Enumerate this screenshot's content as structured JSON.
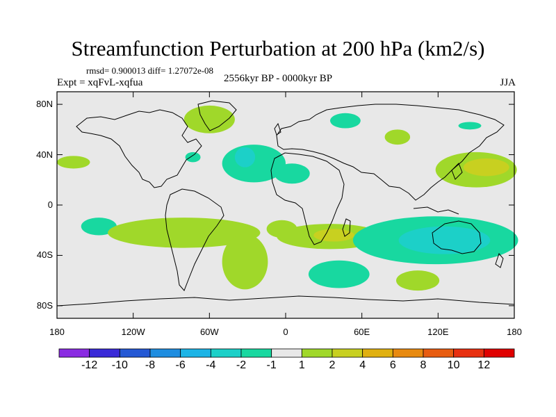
{
  "title": "Streamfunction Perturbation at 200 hPa (km2/s)",
  "stats_line": "rmsd= 0.900013 diff= 1.27072e-08",
  "expt_line": "Expt = xqFvL-xqfua",
  "period_line": "2556kyr BP - 0000kyr BP",
  "season": "JJA",
  "axes": {
    "lat_labels": [
      "80N",
      "40N",
      "0",
      "40S",
      "80S"
    ],
    "lat_values": [
      80,
      40,
      0,
      -40,
      -80
    ],
    "lon_labels": [
      "180",
      "120W",
      "60W",
      "0",
      "60E",
      "120E",
      "180"
    ],
    "lon_values": [
      -180,
      -120,
      -60,
      0,
      60,
      120,
      180
    ],
    "lat_range": [
      -90,
      90
    ],
    "lon_range": [
      -180,
      180
    ]
  },
  "colorbar": {
    "labels": [
      "-12",
      "-10",
      "-8",
      "-6",
      "-4",
      "-2",
      "-1",
      "1",
      "2",
      "4",
      "6",
      "8",
      "10",
      "12"
    ],
    "colors": [
      "#8a2be2",
      "#3a2ad8",
      "#2458d4",
      "#1e8de0",
      "#1cb4e6",
      "#1cd0c8",
      "#18d8a0",
      "#e8e8e8",
      "#a0d82a",
      "#c8d020",
      "#e0b010",
      "#e88a10",
      "#e85c10",
      "#e83010",
      "#e00000"
    ]
  },
  "fields": [
    {
      "name": "n-atlantic-green",
      "lon": -60,
      "lat": 68,
      "rlon": 20,
      "rlat": 11,
      "color": "#a0d82a"
    },
    {
      "name": "ne-america-teal",
      "lon": -73,
      "lat": 38,
      "rlon": 6,
      "rlat": 4,
      "color": "#18d8a0"
    },
    {
      "name": "atlantic-negative-outer",
      "lon": -25,
      "lat": 33,
      "rlon": 25,
      "rlat": 15,
      "color": "#18d8a0"
    },
    {
      "name": "atlantic-negative-inner",
      "lon": -32,
      "lat": 38,
      "rlon": 8,
      "rlat": 8,
      "color": "#1cd0c8"
    },
    {
      "name": "n-africa-teal",
      "lon": 5,
      "lat": 25,
      "rlon": 14,
      "rlat": 8,
      "color": "#18d8a0"
    },
    {
      "name": "w-pacific-coast-green",
      "lon": -167,
      "lat": 34,
      "rlon": 13,
      "rlat": 5,
      "color": "#a0d82a"
    },
    {
      "name": "europe-teal",
      "lon": 47,
      "lat": 67,
      "rlon": 12,
      "rlat": 6,
      "color": "#18d8a0"
    },
    {
      "name": "central-asia-green",
      "lon": 88,
      "lat": 54,
      "rlon": 10,
      "rlat": 6,
      "color": "#a0d82a"
    },
    {
      "name": "siberia-teal",
      "lon": 145,
      "lat": 63,
      "rlon": 9,
      "rlat": 3,
      "color": "#18d8a0"
    },
    {
      "name": "nw-pacific-green",
      "lon": 150,
      "lat": 28,
      "rlon": 32,
      "rlat": 14,
      "color": "#a0d82a"
    },
    {
      "name": "nw-pacific-yellow",
      "lon": 158,
      "lat": 30,
      "rlon": 18,
      "rlat": 7,
      "color": "#c8d020"
    },
    {
      "name": "s-pacific-teal",
      "lon": -147,
      "lat": -17,
      "rlon": 14,
      "rlat": 7,
      "color": "#18d8a0"
    },
    {
      "name": "south-america-green",
      "lon": -80,
      "lat": -22,
      "rlon": 60,
      "rlat": 12,
      "color": "#a0d82a"
    },
    {
      "name": "s-atlantic-green",
      "lon": -32,
      "lat": -45,
      "rlon": 18,
      "rlat": 22,
      "color": "#a0d82a"
    },
    {
      "name": "s-africa-green",
      "lon": 35,
      "lat": -25,
      "rlon": 42,
      "rlat": 10,
      "color": "#a0d82a"
    },
    {
      "name": "s-africa-yellow",
      "lon": 38,
      "lat": -24,
      "rlon": 16,
      "rlat": 5,
      "color": "#c8d020"
    },
    {
      "name": "s-indian-teal",
      "lon": 42,
      "lat": -55,
      "rlon": 24,
      "rlat": 11,
      "color": "#18d8a0"
    },
    {
      "name": "australia-teal",
      "lon": 118,
      "lat": -28,
      "rlon": 65,
      "rlat": 19,
      "color": "#18d8a0"
    },
    {
      "name": "australia-cyan",
      "lon": 125,
      "lat": -28,
      "rlon": 36,
      "rlat": 11,
      "color": "#1cd0c8"
    },
    {
      "name": "s-pacific-green",
      "lon": 104,
      "lat": -60,
      "rlon": 17,
      "rlat": 8,
      "color": "#a0d82a"
    },
    {
      "name": "w-africa-green",
      "lon": -3,
      "lat": -19,
      "rlon": 12,
      "rlat": 7,
      "color": "#a0d82a"
    }
  ]
}
